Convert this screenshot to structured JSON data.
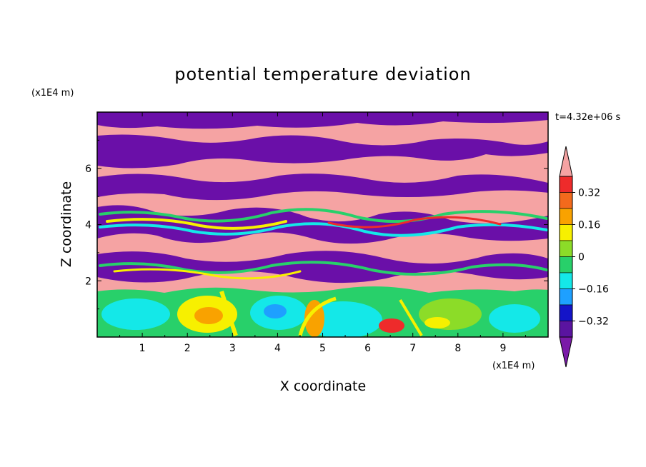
{
  "chart_data": {
    "type": "heatmap",
    "title": "potential temperature deviation",
    "xlabel": "X coordinate",
    "ylabel": "Z coordinate",
    "x_unit": "(x1E4 m)",
    "y_unit": "(x1E4 m)",
    "time_label": "t=4.32e+06 s",
    "xlim": [
      0,
      10
    ],
    "ylim": [
      0,
      8
    ],
    "x_ticks": [
      "1",
      "2",
      "3",
      "4",
      "5",
      "6",
      "7",
      "8",
      "9"
    ],
    "y_ticks": [
      "2",
      "4",
      "6"
    ],
    "colorbar": {
      "levels": [
        -0.48,
        -0.4,
        -0.32,
        -0.24,
        -0.16,
        -0.08,
        0,
        0.08,
        0.16,
        0.24,
        0.32,
        0.4,
        0.48
      ],
      "labels": [
        "0.32",
        "0.16",
        "0",
        "−0.16",
        "−0.32"
      ],
      "colors_top_to_bottom": [
        "#f5a3a3",
        "#ee2b2b",
        "#f36a1c",
        "#f9a200",
        "#f7f000",
        "#8cdc28",
        "#28d06a",
        "#14e8e8",
        "#1ea0ff",
        "#1414c8",
        "#5a14a0",
        "#7a1aa8"
      ],
      "extend": "both"
    }
  }
}
